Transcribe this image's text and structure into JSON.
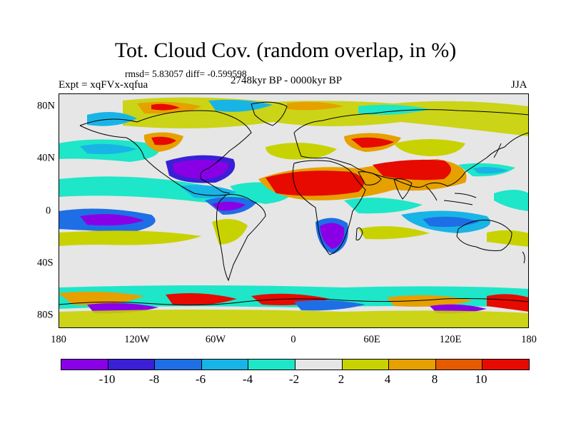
{
  "title": "Tot. Cloud Cov. (random overlap, in %)",
  "stats": "rmsd= 5.83057 diff= -0.599598",
  "experiment": "Expt = xqFVx-xqfua",
  "period": "2748kyr BP - 0000kyr BP",
  "season": "JJA",
  "map": {
    "projection": "cylindrical-equidistant",
    "lon_range": [
      -180,
      180
    ],
    "lat_range": [
      -90,
      90
    ],
    "x_ticks": [
      "180",
      "120W",
      "60W",
      "0",
      "60E",
      "120E",
      "180"
    ],
    "y_ticks": [
      "80N",
      "40N",
      "0",
      "40S",
      "80S"
    ]
  },
  "colorbar": {
    "levels": [
      "-10",
      "-8",
      "-6",
      "-4",
      "-2",
      "2",
      "4",
      "8",
      "10"
    ],
    "colors": [
      "#8a00e6",
      "#3a1fd6",
      "#1e6ee6",
      "#19b4e6",
      "#1ee6c8",
      "#e6e6e6",
      "#c8d200",
      "#e6a000",
      "#e65a00",
      "#e60a00"
    ]
  },
  "colors": {
    "background": "#e6e6e6",
    "coast": "#000000"
  }
}
